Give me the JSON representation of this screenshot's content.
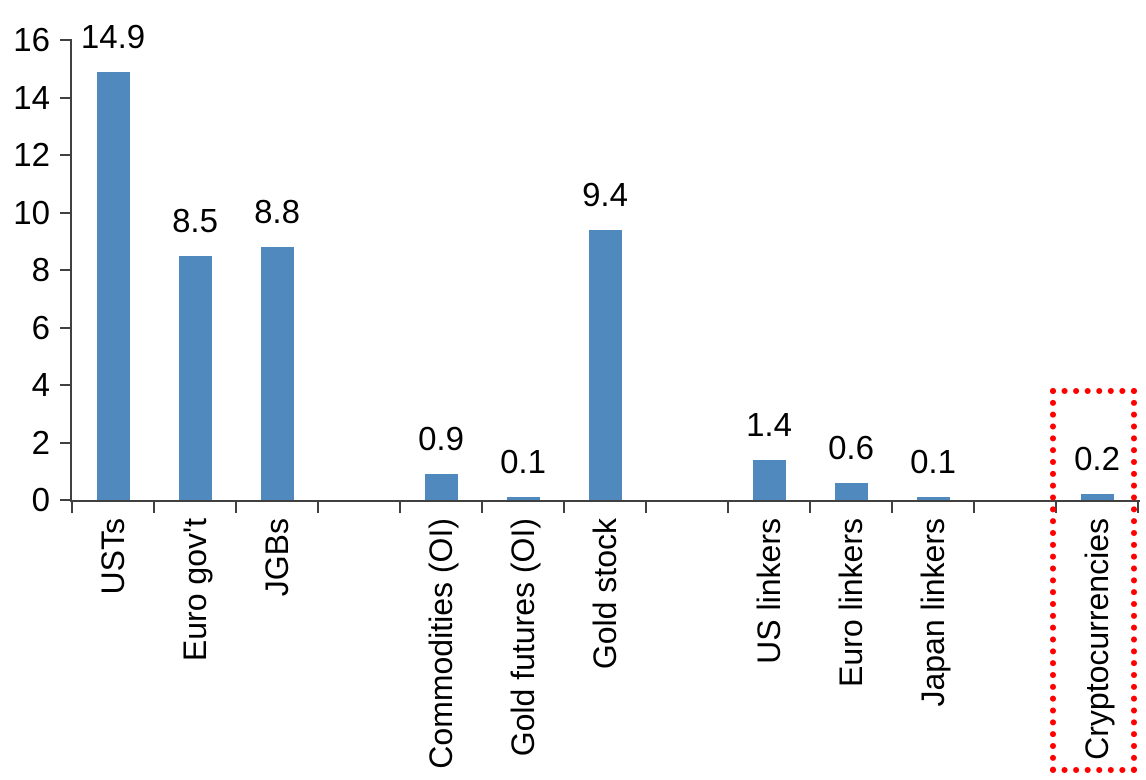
{
  "chart_data": {
    "type": "bar",
    "title": "",
    "xlabel": "",
    "ylabel": "",
    "categories": [
      "USTs",
      "Euro gov't",
      "JGBs",
      "",
      "Commodities (OI)",
      "Gold futures (OI)",
      "Gold stock",
      "",
      "US linkers",
      "Euro linkers",
      "Japan linkers",
      "",
      "Cryptocurrencies"
    ],
    "values": [
      14.9,
      8.5,
      8.8,
      null,
      0.9,
      0.1,
      9.4,
      null,
      1.4,
      0.6,
      0.1,
      null,
      0.2
    ],
    "value_labels": [
      "14.9",
      "8.5",
      "8.8",
      null,
      "0.9",
      "0.1",
      "9.4",
      null,
      "1.4",
      "0.6",
      "0.1",
      null,
      "0.2"
    ],
    "ylim": [
      0,
      16
    ],
    "y_ticks": [
      0,
      2,
      4,
      6,
      8,
      10,
      12,
      14,
      16
    ],
    "grid": false,
    "legend": false,
    "bar_color": "#4f89bd",
    "axis_color": "#404040",
    "text_color": "#000000",
    "highlight": {
      "category": "Cryptocurrencies",
      "style": "red-dotted-box",
      "color": "#ff0000"
    }
  }
}
